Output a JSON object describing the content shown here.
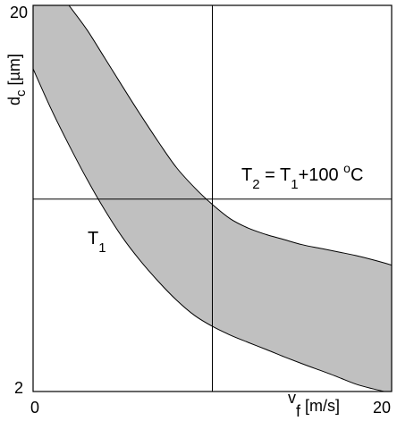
{
  "chart_data": {
    "type": "area",
    "xlabel": {
      "sup": "v",
      "sub": "f",
      "rest": "[m/s]"
    },
    "ylabel": {
      "main": "d",
      "sub": "c",
      "rest": " [µm]"
    },
    "xlim": [
      0,
      20
    ],
    "ylim": [
      2,
      20
    ],
    "y_scale": "log",
    "x_tick_labels": [
      "0",
      "20"
    ],
    "y_tick_labels": [
      "20",
      "2"
    ],
    "reference_lines": {
      "x": 10,
      "y": 6.3
    },
    "grid": false,
    "band_fill": "#c0c0c0",
    "series": [
      {
        "name": "T_1",
        "x": [
          0,
          1,
          2,
          3,
          4,
          5,
          6,
          7,
          8,
          9,
          10,
          11,
          12,
          13,
          14,
          15,
          16,
          17,
          18,
          19,
          20
        ],
        "values": [
          13.7,
          10.8,
          8.7,
          7.1,
          5.9,
          5.0,
          4.35,
          3.85,
          3.45,
          3.15,
          2.95,
          2.8,
          2.68,
          2.57,
          2.46,
          2.36,
          2.27,
          2.18,
          2.09,
          2.03,
          1.98
        ]
      },
      {
        "name": "T_2 = T_1 +100 °C",
        "x": [
          2,
          3,
          4,
          5,
          6,
          7,
          8,
          9,
          10,
          11,
          12,
          13,
          14,
          15,
          16,
          17,
          18,
          19,
          20
        ],
        "values": [
          20.0,
          17.3,
          14.6,
          12.3,
          10.4,
          8.85,
          7.6,
          6.75,
          6.1,
          5.6,
          5.3,
          5.1,
          4.95,
          4.8,
          4.7,
          4.6,
          4.5,
          4.38,
          4.25
        ]
      }
    ]
  },
  "annotations": {
    "t1": {
      "main": "T",
      "sub": "1"
    },
    "t2": {
      "lhs": "T",
      "lhs_sub": "2",
      "eq": " = ",
      "rhs": "T",
      "rhs_sub": "1",
      "plus": "+100 ",
      "deg": "o",
      "unit": "C"
    }
  }
}
